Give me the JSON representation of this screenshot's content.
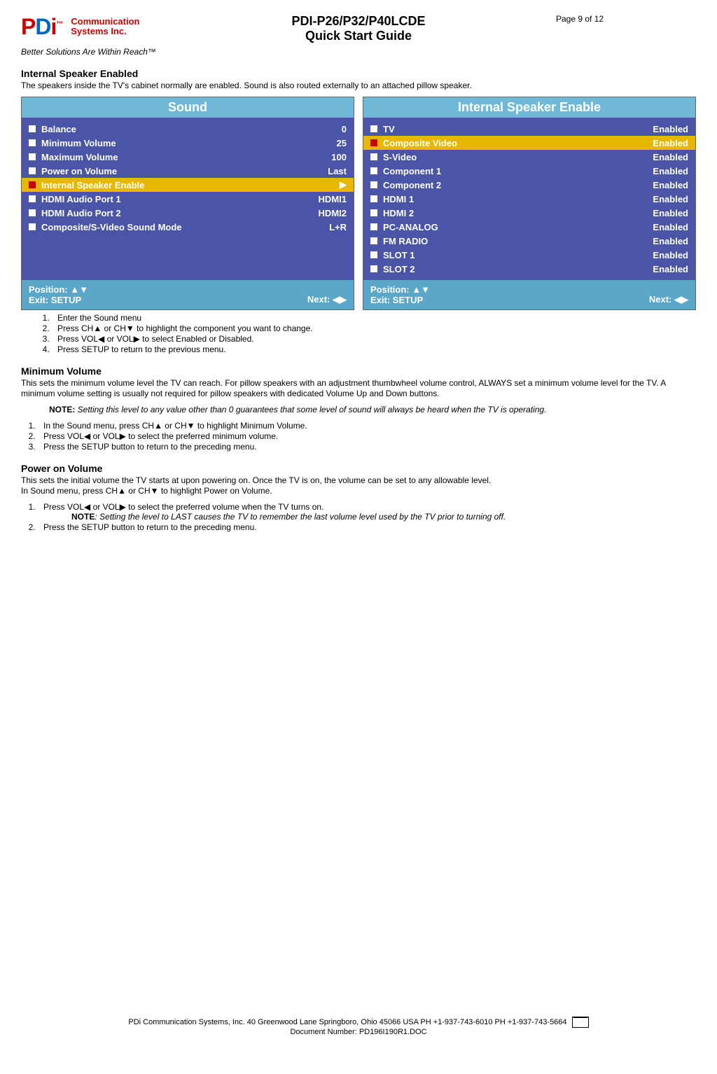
{
  "header": {
    "company_line1": "Communication",
    "company_line2": "Systems Inc.",
    "tagline": "Better Solutions Are Within Reach™",
    "doc_title1": "PDI-P26/P32/P40LCDE",
    "doc_title2": "Quick Start Guide",
    "page": "Page 9 of 12"
  },
  "section1": {
    "heading": "Internal Speaker Enabled",
    "text": "The speakers inside the TV's cabinet normally are enabled. Sound is also routed externally to an attached pillow speaker."
  },
  "menu_left": {
    "title": "Sound",
    "rows": [
      {
        "label": "Balance",
        "value": "0",
        "selected": false
      },
      {
        "label": "Minimum Volume",
        "value": "25",
        "selected": false
      },
      {
        "label": "Maximum Volume",
        "value": "100",
        "selected": false
      },
      {
        "label": "Power on Volume",
        "value": "Last",
        "selected": false
      },
      {
        "label": "Internal Speaker Enable",
        "value": "▶",
        "selected": true
      },
      {
        "label": "HDMI Audio Port 1",
        "value": "HDMI1",
        "selected": false
      },
      {
        "label": "HDMI Audio Port 2",
        "value": "HDMI2",
        "selected": false
      },
      {
        "label": "Composite/S-Video Sound Mode",
        "value": "L+R",
        "selected": false
      }
    ],
    "footer_pos": "Position: ▲▼",
    "footer_exit": "Exit: SETUP",
    "footer_next": "Next: ◀▶"
  },
  "menu_right": {
    "title": "Internal Speaker Enable",
    "rows": [
      {
        "label": "TV",
        "value": "Enabled",
        "selected": false
      },
      {
        "label": "Composite Video",
        "value": "Enabled",
        "selected": true
      },
      {
        "label": "S-Video",
        "value": "Enabled",
        "selected": false
      },
      {
        "label": "Component 1",
        "value": "Enabled",
        "selected": false
      },
      {
        "label": "Component 2",
        "value": "Enabled",
        "selected": false
      },
      {
        "label": "HDMI 1",
        "value": "Enabled",
        "selected": false
      },
      {
        "label": "HDMI 2",
        "value": "Enabled",
        "selected": false
      },
      {
        "label": "PC-ANALOG",
        "value": "Enabled",
        "selected": false
      },
      {
        "label": "FM RADIO",
        "value": "Enabled",
        "selected": false
      },
      {
        "label": "SLOT 1",
        "value": "Enabled",
        "selected": false
      },
      {
        "label": "SLOT 2",
        "value": "Enabled",
        "selected": false
      }
    ],
    "footer_pos": "Position: ▲▼",
    "footer_exit": "Exit: SETUP",
    "footer_next": "Next: ◀▶"
  },
  "steps1": [
    "Enter the Sound menu",
    "Press CH▲ or CH▼ to highlight the component you want to change.",
    "Press VOL◀ or VOL▶ to select Enabled or Disabled.",
    "Press SETUP to return to the previous menu."
  ],
  "section2": {
    "heading": "Minimum Volume",
    "text": "This sets the minimum volume level the TV can reach. For pillow speakers with an adjustment thumbwheel volume control, ALWAYS set a minimum volume level for the TV. A minimum volume setting is usually not required for pillow speakers with dedicated Volume Up and Down buttons.",
    "note_label": "NOTE: ",
    "note_text": "Setting this level to any value other than 0 guarantees that some level of sound will always be heard when the TV is operating."
  },
  "steps2": [
    "In the Sound menu, press CH▲ or CH▼ to highlight Minimum Volume.",
    "Press VOL◀ or VOL▶ to select the preferred minimum volume.",
    "Press the SETUP button to return to the preceding menu."
  ],
  "section3": {
    "heading": "Power on Volume",
    "text": "This sets the initial volume the TV starts at upon powering on. Once the TV is on, the volume can be set to any allowable level.",
    "line2": "In Sound menu, press CH▲ or CH▼ to highlight Power on Volume.",
    "step1": "Press VOL◀ or VOL▶ to select the preferred volume when the TV turns on.",
    "note_label": "NOTE",
    "note_text": ": Setting the level to LAST causes the TV to remember the last volume level used by the TV prior to turning off.",
    "step2": "Press the SETUP button to return to the preceding menu."
  },
  "footer": {
    "line1": "PDi Communication Systems, Inc.   40 Greenwood Lane   Springboro, Ohio 45066 USA   PH +1-937-743-6010 PH +1-937-743-5664",
    "line2": "Document Number:  PD196I190R1.DOC"
  }
}
